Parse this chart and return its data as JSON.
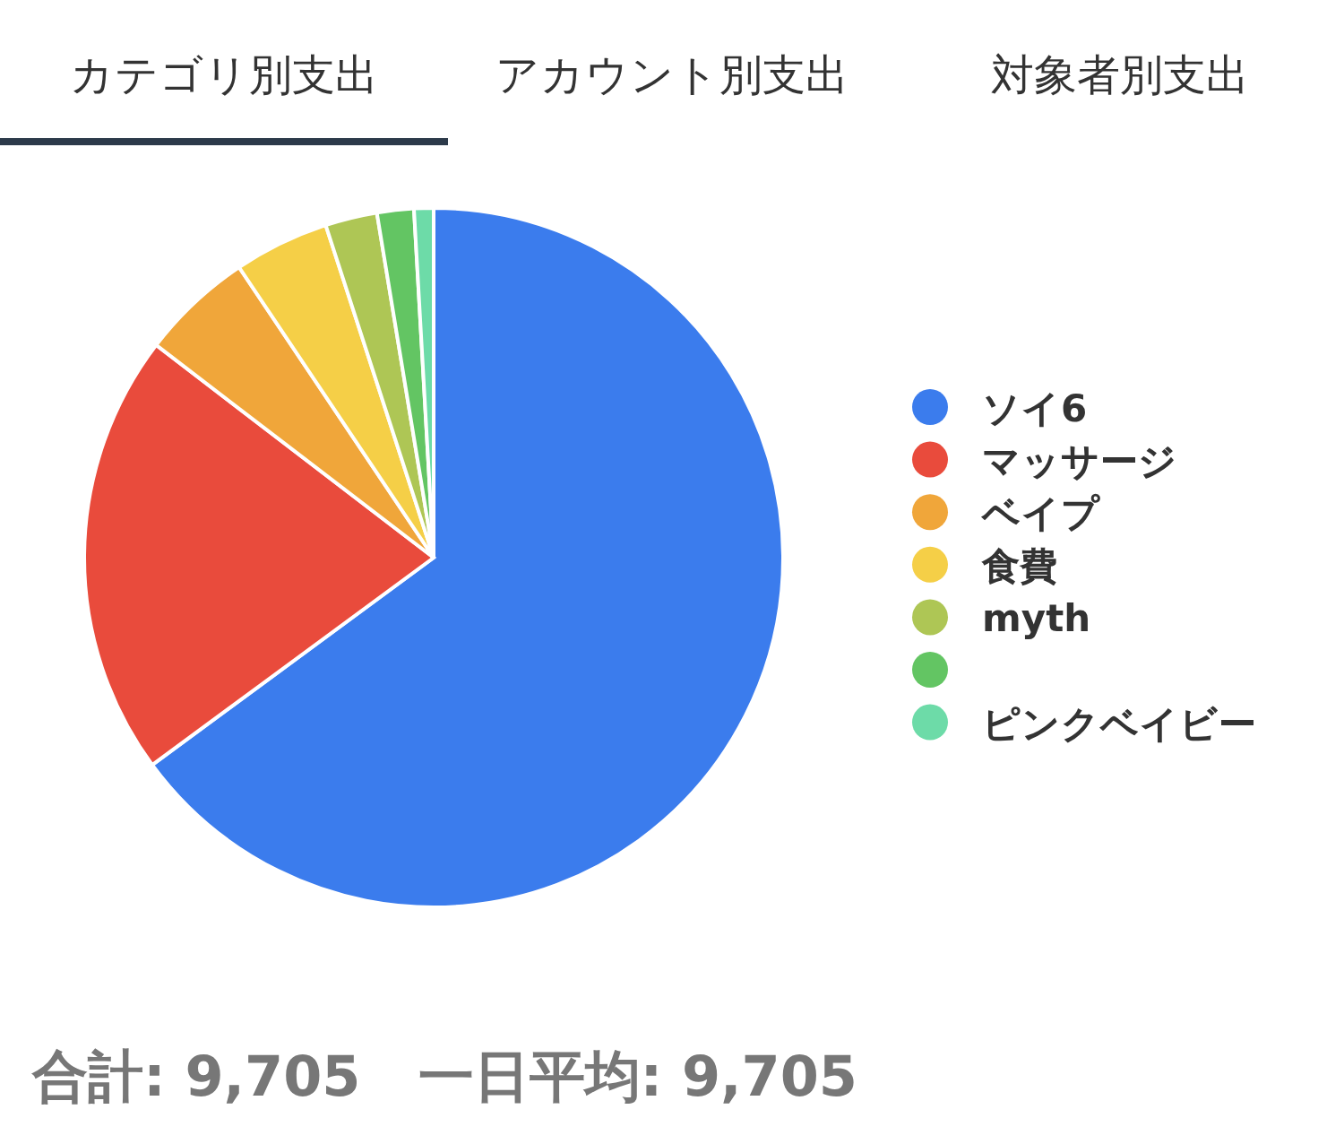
{
  "chart_data": {
    "type": "pie",
    "categories": [
      "ソイ6",
      "マッサージ",
      "ベイプ",
      "食費",
      "myth",
      null,
      "ピンクベイビー"
    ],
    "values": [
      64.9,
      20.5,
      5.2,
      4.4,
      2.4,
      1.7,
      0.9
    ],
    "colors": [
      "#3b7ced",
      "#e94b3c",
      "#f0a63a",
      "#f5cf47",
      "#aec655",
      "#63c563",
      "#6ddba8"
    ],
    "legend": "right",
    "annotations": [
      "カテゴリ別支出",
      "アカウント別支出",
      "対象者別支出",
      "合計: 9,705",
      "一日平均: 9,705"
    ]
  }
}
